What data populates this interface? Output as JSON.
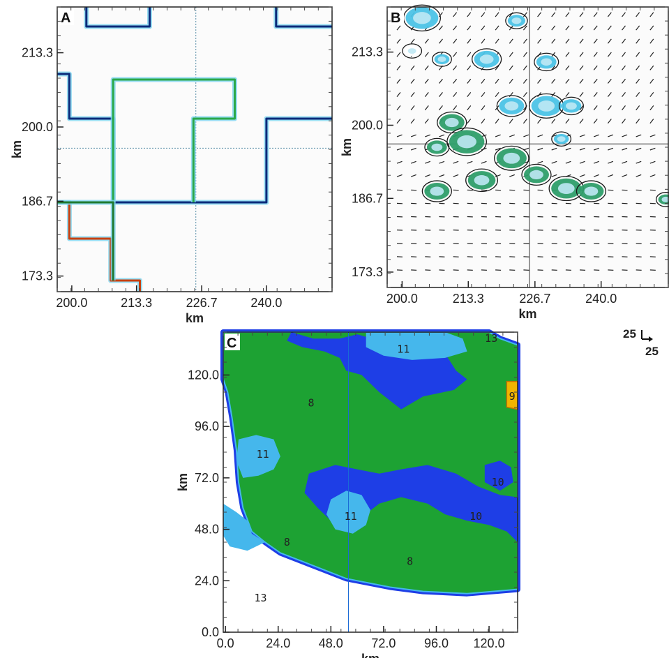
{
  "chart_data": [
    {
      "panel": "A",
      "type": "line",
      "xlabel": "km",
      "ylabel": "km",
      "x_ticks": [
        "200.0",
        "213.3",
        "226.7",
        "240.0"
      ],
      "y_ticks": [
        "213.3",
        "200.0",
        "186.7",
        "173.3"
      ],
      "xlim": [
        197,
        253.5
      ],
      "ylim": [
        170.5,
        221.5
      ],
      "crosshair": {
        "x": 225.5,
        "y": 196.2
      },
      "series": [
        {
          "color": "#0b2a7a",
          "points": [
            [
              203,
              221.5
            ],
            [
              203,
              218
            ],
            [
              216,
              218
            ],
            [
              216,
              221.5
            ]
          ]
        },
        {
          "color": "#0b2a7a",
          "points": [
            [
              242,
              221.5
            ],
            [
              242,
              218
            ],
            [
              253.5,
              218
            ]
          ]
        },
        {
          "color": "#0b2a7a",
          "points": [
            [
              197,
              209.5
            ],
            [
              199.5,
              209.5
            ],
            [
              199.5,
              201.5
            ],
            [
              208.5,
              201.5
            ],
            [
              208.5,
              186.5
            ],
            [
              240,
              186.5
            ],
            [
              240,
              201.5
            ],
            [
              253.5,
              201.5
            ]
          ]
        },
        {
          "color": "#2aa84a",
          "points": [
            [
              208.5,
              186.5
            ],
            [
              208.5,
              208.5
            ],
            [
              233.5,
              208.5
            ],
            [
              233.5,
              201.5
            ],
            [
              225,
              201.5
            ],
            [
              225,
              186.5
            ]
          ]
        },
        {
          "color": "#c84010",
          "points": [
            [
              197,
              186.5
            ],
            [
              199.5,
              186.5
            ],
            [
              199.5,
              180
            ],
            [
              208,
              180
            ],
            [
              208,
              172.5
            ],
            [
              214,
              172.5
            ],
            [
              214,
              170.5
            ]
          ]
        },
        {
          "color": "#1f7a30",
          "points": [
            [
              197,
              186.5
            ],
            [
              208.5,
              186.5
            ],
            [
              208.5,
              172.5
            ]
          ]
        }
      ]
    },
    {
      "panel": "B",
      "type": "scatter",
      "xlabel": "km",
      "ylabel": "km",
      "x_ticks": [
        "200.0",
        "213.3",
        "226.7",
        "240.0"
      ],
      "y_ticks": [
        "213.3",
        "200.0",
        "186.7",
        "173.3"
      ],
      "xlim": [
        197,
        253.5
      ],
      "ylim": [
        170.5,
        221.5
      ],
      "crosshair": {
        "x": 225.6,
        "y": 196.6
      },
      "vector_field": "wind arrows",
      "cells": [
        {
          "x": 204,
          "y": 219.5,
          "size": 1.3,
          "color": "#4cc3e6"
        },
        {
          "x": 223,
          "y": 219,
          "size": 0.7,
          "color": "#4cc3e6"
        },
        {
          "x": 202,
          "y": 213.5,
          "size": 0.6,
          "color": "#ffffff"
        },
        {
          "x": 208,
          "y": 212,
          "size": 0.6,
          "color": "#4cc3e6"
        },
        {
          "x": 217,
          "y": 212,
          "size": 1.0,
          "color": "#4cc3e6"
        },
        {
          "x": 229,
          "y": 211.5,
          "size": 0.8,
          "color": "#4cc3e6"
        },
        {
          "x": 222,
          "y": 203.5,
          "size": 1.0,
          "color": "#4cc3e6"
        },
        {
          "x": 229,
          "y": 203.5,
          "size": 1.2,
          "color": "#4cc3e6"
        },
        {
          "x": 234,
          "y": 203.5,
          "size": 0.8,
          "color": "#4cc3e6"
        },
        {
          "x": 210,
          "y": 200.5,
          "size": 1.0,
          "color": "#2e9e6a"
        },
        {
          "x": 213,
          "y": 197,
          "size": 1.4,
          "color": "#2e9e6a"
        },
        {
          "x": 207,
          "y": 196,
          "size": 0.8,
          "color": "#2e9e6a"
        },
        {
          "x": 232,
          "y": 197.5,
          "size": 0.6,
          "color": "#4cc3e6"
        },
        {
          "x": 222,
          "y": 194,
          "size": 1.2,
          "color": "#2e9e6a"
        },
        {
          "x": 216,
          "y": 190,
          "size": 1.1,
          "color": "#2e9e6a"
        },
        {
          "x": 227,
          "y": 191,
          "size": 1.0,
          "color": "#2e9e6a"
        },
        {
          "x": 233,
          "y": 188.5,
          "size": 1.2,
          "color": "#2e9e6a"
        },
        {
          "x": 238,
          "y": 188,
          "size": 1.0,
          "color": "#2e9e6a"
        },
        {
          "x": 207,
          "y": 188,
          "size": 1.0,
          "color": "#2e9e6a"
        },
        {
          "x": 253,
          "y": 186.5,
          "size": 0.6,
          "color": "#2e9e6a"
        }
      ]
    },
    {
      "panel": "C",
      "type": "heatmap",
      "xlabel": "km",
      "ylabel": "km",
      "x_ticks": [
        "0.0",
        "24.0",
        "48.0",
        "72.0",
        "96.0",
        "120.0"
      ],
      "y_ticks": [
        "120.0",
        "96.0",
        "72.0",
        "48.0",
        "24.0",
        "0.0"
      ],
      "xlim": [
        -1,
        133
      ],
      "ylim": [
        0,
        140
      ],
      "crosshair": {
        "x": 56
      },
      "region_labels": [
        {
          "text": "13",
          "x": 121,
          "y": 137
        },
        {
          "text": "11",
          "x": 81,
          "y": 132
        },
        {
          "text": "9",
          "x": 130.5,
          "y": 110
        },
        {
          "text": "8",
          "x": 39,
          "y": 107
        },
        {
          "text": "11",
          "x": 17,
          "y": 83
        },
        {
          "text": "10",
          "x": 124,
          "y": 70
        },
        {
          "text": "11",
          "x": 57,
          "y": 54
        },
        {
          "text": "10",
          "x": 114,
          "y": 54
        },
        {
          "text": "8",
          "x": 28,
          "y": 42
        },
        {
          "text": "8",
          "x": 84,
          "y": 33
        },
        {
          "text": "13",
          "x": 16,
          "y": 16
        }
      ],
      "category_colors": {
        "8": "#1da233",
        "9": "#f0b400",
        "10": "#1e3ee6",
        "11": "#45b7ec",
        "13": "#ffffff"
      }
    }
  ],
  "scale": {
    "top_value": "25",
    "bottom_value": "25"
  }
}
